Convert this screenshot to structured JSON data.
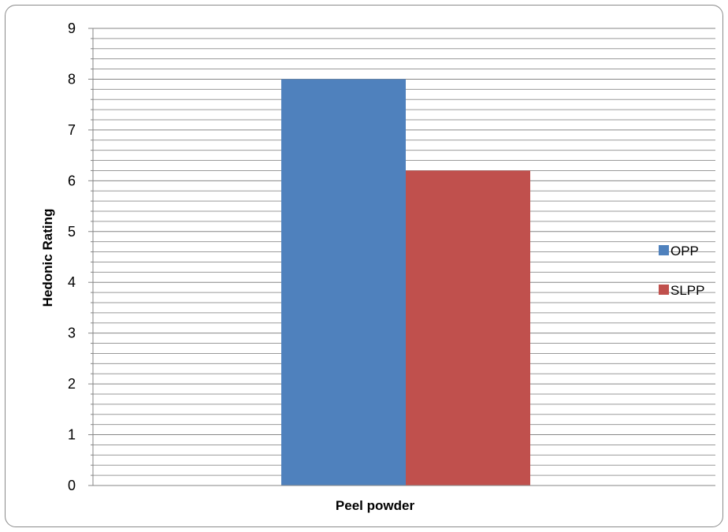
{
  "chart_data": {
    "type": "bar",
    "categories": [
      "Peel powder"
    ],
    "series": [
      {
        "name": "OPP",
        "values": [
          8.0
        ],
        "color": "#4f81bd"
      },
      {
        "name": "SLPP",
        "values": [
          6.2
        ],
        "color": "#c0504d"
      }
    ],
    "xlabel": "Peel powder",
    "ylabel": "Hedonic Rating",
    "ylim": [
      0,
      9
    ],
    "yticks": [
      0,
      1,
      2,
      3,
      4,
      5,
      6,
      7,
      8,
      9
    ],
    "minor_ticks_per_major": 5,
    "grid": true,
    "legend_position": "right"
  }
}
